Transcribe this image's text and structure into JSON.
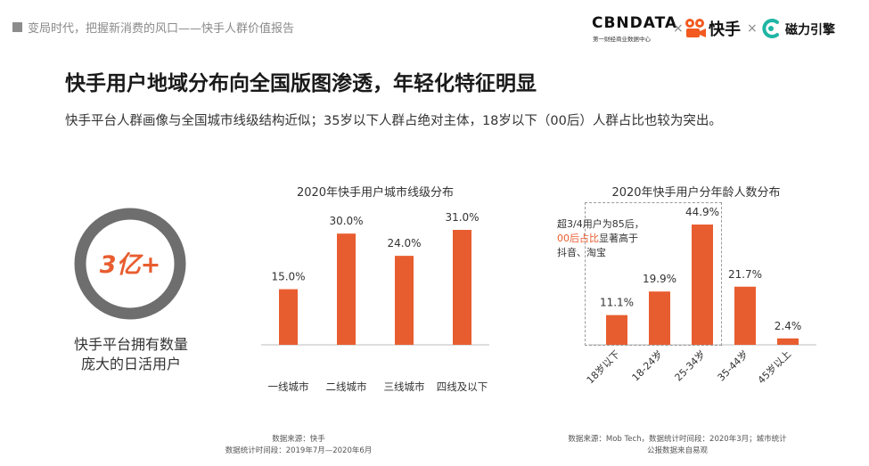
{
  "header": {
    "text": "变局时代，把握新消费的风口——快手人群价值报告"
  },
  "logos": {
    "cbn_main": "CBNDATA",
    "cbn_sub": "第一财经商业数据中心",
    "times": "×",
    "kuaishou": "快手",
    "cili": "磁力引擎"
  },
  "title": "快手用户地域分布向全国版图渗透，年轻化特征明显",
  "subtitle": "快手平台人群画像与全国城市线级结构近似；35岁以下人群占绝对主体，18岁以下（00后）人群占比也较为突出。",
  "dau": {
    "value": "3亿+",
    "caption_line1": "快手平台拥有数量",
    "caption_line2": "庞大的日活用户"
  },
  "chart_data": [
    {
      "type": "bar",
      "title": "2020年快手用户城市线级分布",
      "categories": [
        "一线城市",
        "二线城市",
        "三线城市",
        "四线及以下"
      ],
      "values": [
        15.0,
        30.0,
        24.0,
        31.0
      ],
      "value_labels": [
        "15.0%",
        "30.0%",
        "24.0%",
        "31.0%"
      ],
      "unit": "%",
      "ylim": [
        0,
        35
      ],
      "xlabel": "",
      "ylabel": "",
      "source_line1": "数据来源：快手",
      "source_line2": "数据统计时间段：2019年7月—2020年6月"
    },
    {
      "type": "bar",
      "title": "2020年快手用户分年龄人数分布",
      "categories": [
        "18岁以下",
        "18-24岁",
        "25-34岁",
        "35-44岁",
        "45岁以上"
      ],
      "values": [
        11.1,
        19.9,
        44.9,
        21.7,
        2.4
      ],
      "value_labels": [
        "11.1%",
        "19.9%",
        "44.9%",
        "21.7%",
        "2.4%"
      ],
      "unit": "%",
      "ylim": [
        0,
        50
      ],
      "xlabel": "",
      "ylabel": "",
      "source_line1": "数据来源：Mob Tech，数据统计时间段：2020年3月；城市统计",
      "source_line2": "公报数据来自易观"
    }
  ],
  "annotation": {
    "line1": "超3/4用户为85后，",
    "line2_hl": "00后占比",
    "line2_rest": "显著高于",
    "line3": "抖音、淘宝"
  },
  "colors": {
    "bar": "#e85d2f",
    "ring": "#6e6e6e",
    "accent": "#e85d2f",
    "axis": "#bdbdbd"
  }
}
